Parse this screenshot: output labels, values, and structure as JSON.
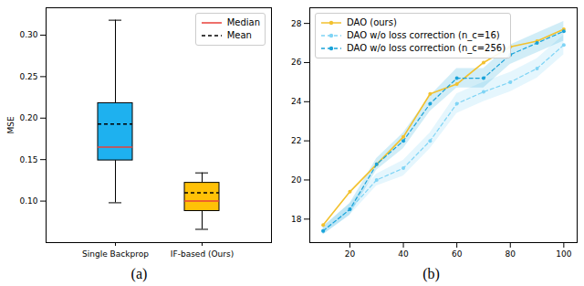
{
  "chart_data": [
    {
      "type": "box",
      "caption": "(a)",
      "y_label": "MSE",
      "categories": [
        "Single Backprop",
        "IF-based (Ours)"
      ],
      "colors": [
        "#1eb1ef",
        "#ffc107"
      ],
      "whisker_low": [
        0.098,
        0.066
      ],
      "q1": [
        0.149,
        0.088
      ],
      "q3": [
        0.218,
        0.122
      ],
      "whisker_high": [
        0.318,
        0.134
      ],
      "series": [
        {
          "name": "Median",
          "color": "#e8413a",
          "line_style": "solid",
          "values": [
            0.165,
            0.1
          ]
        },
        {
          "name": "Mean",
          "color": "#000000",
          "line_style": "dashed",
          "values": [
            0.193,
            0.11
          ]
        }
      ],
      "ylim": [
        0.05,
        0.333
      ],
      "yticks": [
        {
          "value": 0.1,
          "label": "0.10"
        },
        {
          "value": 0.15,
          "label": "0.15"
        },
        {
          "value": 0.2,
          "label": "0.20"
        },
        {
          "value": 0.25,
          "label": "0.25"
        },
        {
          "value": 0.3,
          "label": "0.30"
        }
      ],
      "legend": "upper right"
    },
    {
      "type": "line",
      "caption": "(b)",
      "x": [
        10,
        20,
        30,
        40,
        50,
        60,
        70,
        80,
        90,
        100
      ],
      "series": [
        {
          "name": "DAO (ours)",
          "color": "#f2c12e",
          "line_style": "solid",
          "marker": "circle",
          "values": [
            17.7,
            19.4,
            20.8,
            22.2,
            24.4,
            24.9,
            26.0,
            26.8,
            27.1,
            27.7
          ]
        },
        {
          "name": "DAO w/o loss correction (n_c=16)",
          "color": "#7fd4f5",
          "line_style": "dashed",
          "marker": "circle",
          "values": [
            17.4,
            18.5,
            20.0,
            20.6,
            22.0,
            23.9,
            24.5,
            25.0,
            25.7,
            26.9
          ],
          "errors": [
            0.2,
            0.3,
            0.3,
            0.4,
            0.4,
            0.5,
            0.5,
            0.5,
            0.5,
            0.5
          ]
        },
        {
          "name": "DAO w/o loss correction (n_c=256)",
          "color": "#1aa3d9",
          "line_style": "dashed",
          "marker": "circle",
          "values": [
            17.4,
            18.5,
            20.8,
            22.0,
            23.9,
            25.2,
            25.2,
            26.4,
            27.0,
            27.6
          ],
          "errors": [
            0.2,
            0.3,
            0.3,
            0.4,
            0.4,
            0.5,
            0.5,
            0.5,
            0.5,
            0.5
          ]
        }
      ],
      "xlim": [
        5,
        105
      ],
      "xticks": [
        20,
        40,
        60,
        80,
        100
      ],
      "ylim": [
        16.8,
        28.8
      ],
      "yticks": [
        18,
        20,
        22,
        24,
        26,
        28
      ],
      "legend": "upper left"
    }
  ]
}
